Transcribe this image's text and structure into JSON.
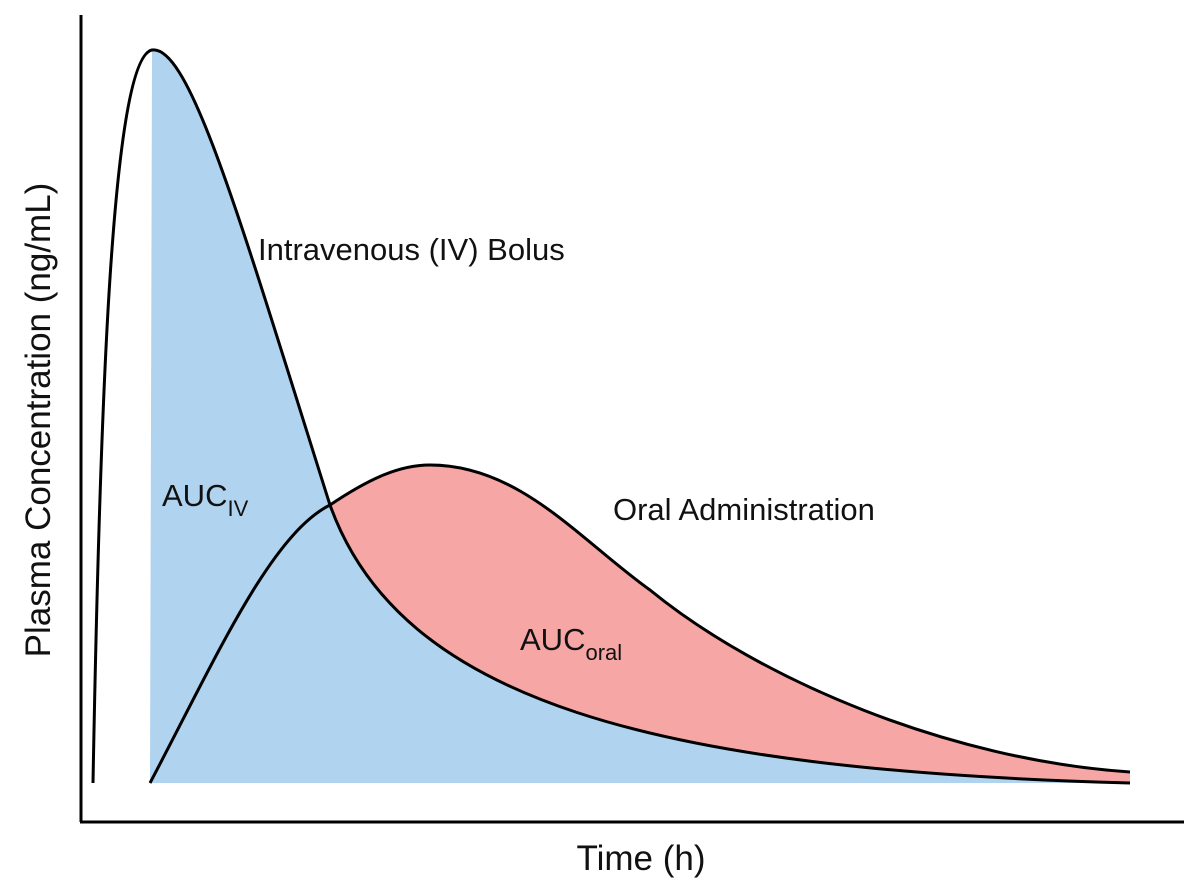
{
  "axes": {
    "y_label": "Plasma Concentration (ng/mL)",
    "x_label": "Time (h)"
  },
  "annotations": {
    "iv_curve": "Intravenous (IV) Bolus",
    "oral_curve": "Oral Administration"
  },
  "areas": {
    "auc_iv": {
      "main": "AUC",
      "sub": "IV"
    },
    "auc_oral": {
      "main": "AUC",
      "sub": "oral"
    }
  }
}
